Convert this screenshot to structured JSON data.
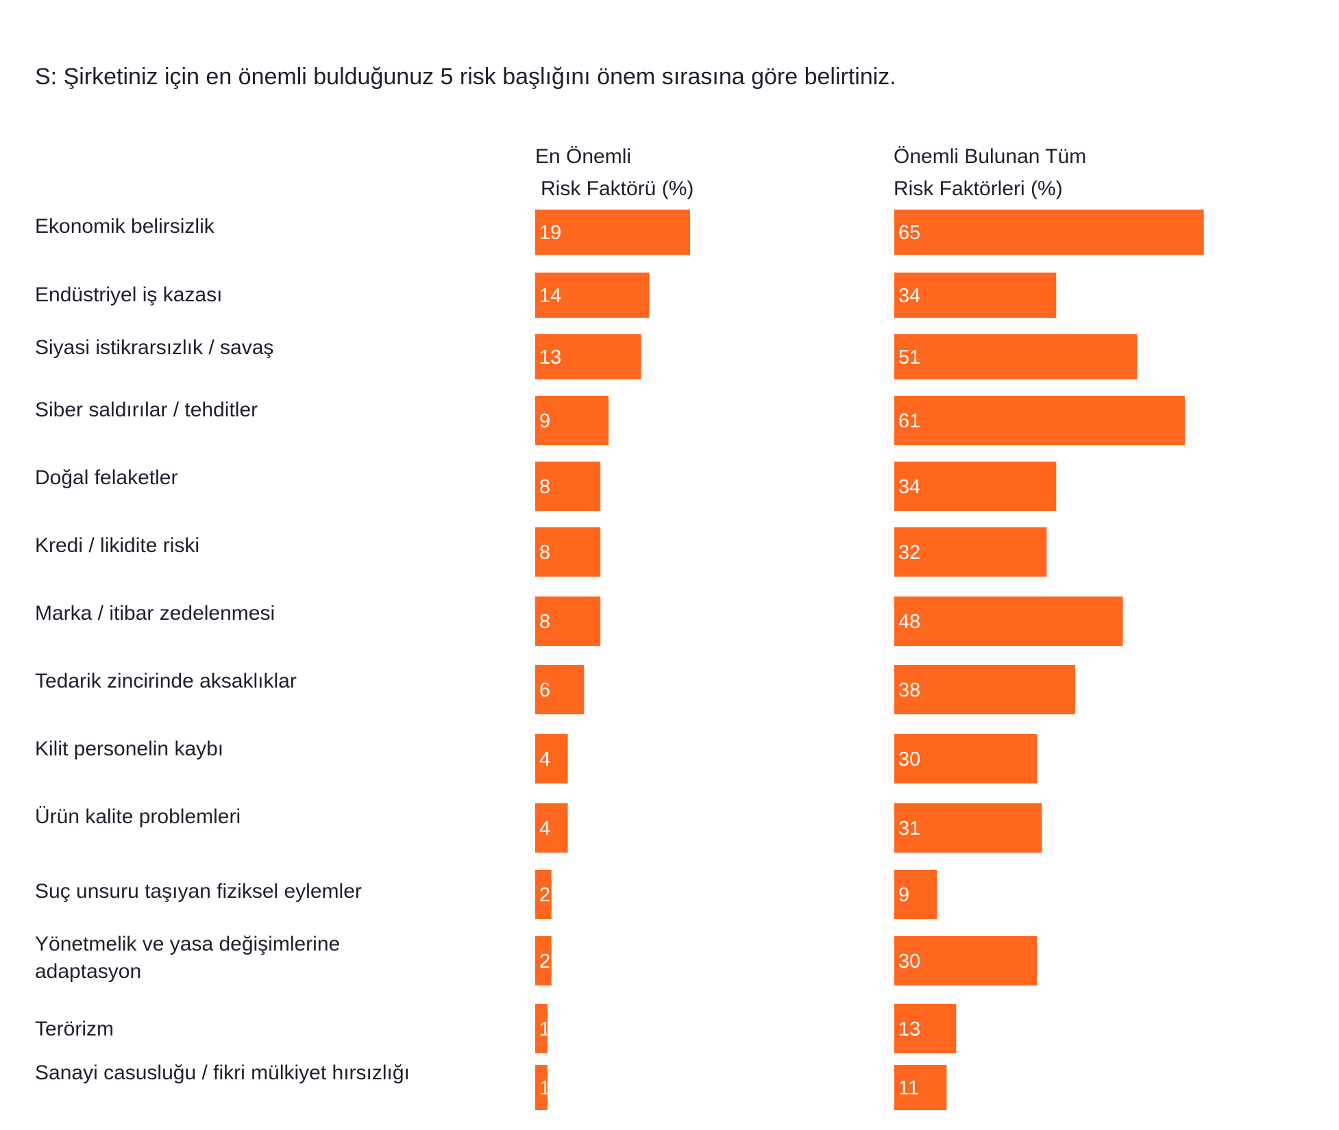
{
  "question": "S: Şirketiniz için en önemli bulduğunuz 5 risk başlığını önem sırasına göre belirtiniz.",
  "chart_data": {
    "type": "bar",
    "orientation": "horizontal",
    "title": "S: Şirketiniz için en önemli bulduğunuz 5 risk başlığını önem sırasına göre belirtiniz.",
    "bar_color": "#FF671F",
    "categories": [
      [
        "Ekonomik belirsizlik"
      ],
      [
        "Endüstriyel iş kazası"
      ],
      [
        "Siyasi istikrarsızlık / savaş"
      ],
      [
        "Siber saldırılar / tehditler"
      ],
      [
        "Doğal felaketler"
      ],
      [
        "Kredi / likidite riski"
      ],
      [
        "Marka / itibar zedelenmesi"
      ],
      [
        "Tedarik zincirinde aksaklıklar"
      ],
      [
        "Kilit personelin kaybı"
      ],
      [
        "Ürün kalite problemleri"
      ],
      [
        "Suç unsuru taşıyan fiziksel eylemler"
      ],
      [
        "Yönetmelik ve yasa değişimlerine",
        "adaptasyon"
      ],
      [
        "Terörizm"
      ],
      [
        "Sanayi casusluğu / fikri mülkiyet hırsızlığı"
      ]
    ],
    "series": [
      {
        "name_lines": [
          "En Önemli",
          "Risk Faktörü (%)"
        ],
        "values": [
          19,
          14,
          13,
          9,
          8,
          8,
          8,
          6,
          4,
          4,
          2,
          2,
          1,
          1
        ]
      },
      {
        "name_lines": [
          "Önemli Bulunan Tüm",
          "Risk Faktörleri (%)"
        ],
        "values": [
          65,
          34,
          51,
          61,
          34,
          32,
          48,
          38,
          30,
          31,
          9,
          30,
          13,
          11
        ]
      }
    ]
  }
}
